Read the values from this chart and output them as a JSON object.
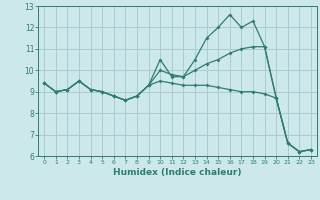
{
  "title": "",
  "xlabel": "Humidex (Indice chaleur)",
  "hours": [
    0,
    1,
    2,
    3,
    4,
    5,
    6,
    7,
    8,
    9,
    10,
    11,
    12,
    13,
    14,
    15,
    16,
    17,
    18,
    19,
    20,
    21,
    22,
    23
  ],
  "line1": [
    9.4,
    9.0,
    9.1,
    9.5,
    9.1,
    9.0,
    8.8,
    8.6,
    8.8,
    9.3,
    10.5,
    9.7,
    9.7,
    10.5,
    11.5,
    12.0,
    12.6,
    12.0,
    12.3,
    11.1,
    8.7,
    6.6,
    6.2,
    6.3
  ],
  "line2": [
    9.4,
    9.0,
    9.1,
    9.5,
    9.1,
    9.0,
    8.8,
    8.6,
    8.8,
    9.3,
    10.0,
    9.8,
    9.7,
    10.0,
    10.3,
    10.5,
    10.8,
    11.0,
    11.1,
    11.1,
    8.7,
    6.6,
    6.2,
    6.3
  ],
  "line3": [
    9.4,
    9.0,
    9.1,
    9.5,
    9.1,
    9.0,
    8.8,
    8.6,
    8.8,
    9.3,
    9.5,
    9.4,
    9.3,
    9.3,
    9.3,
    9.2,
    9.1,
    9.0,
    9.0,
    8.9,
    8.7,
    6.6,
    6.2,
    6.3
  ],
  "line_color": "#2e7d6e",
  "bg_color": "#cde8ea",
  "grid_color": "#aaccce",
  "ylim": [
    6,
    13
  ],
  "yticks": [
    6,
    7,
    8,
    9,
    10,
    11,
    12,
    13
  ],
  "xticks": [
    0,
    1,
    2,
    3,
    4,
    5,
    6,
    7,
    8,
    9,
    10,
    11,
    12,
    13,
    14,
    15,
    16,
    17,
    18,
    19,
    20,
    21,
    22,
    23
  ]
}
